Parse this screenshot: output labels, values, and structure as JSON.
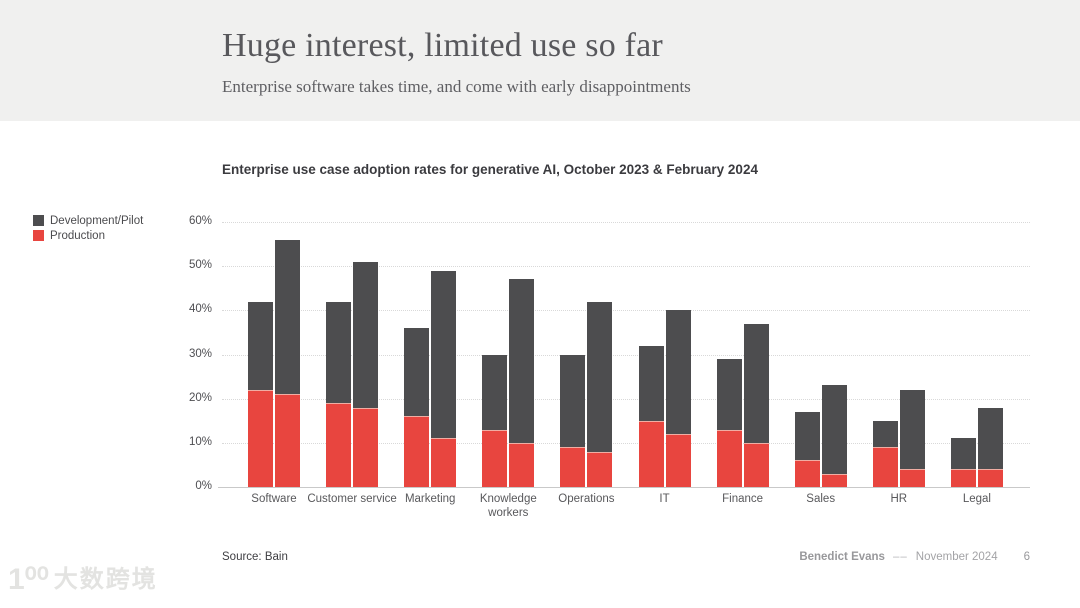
{
  "slide": {
    "title": "Huge interest, limited use so far",
    "subtitle": "Enterprise software takes time, and come with early disappointments",
    "footer": {
      "source": "Source: Bain",
      "author": "Benedict Evans",
      "separator": "––",
      "date": "November 2024",
      "page": "6"
    },
    "watermark": {
      "glyph": "1⁰⁰",
      "text": "大数跨境"
    }
  },
  "chart_data": {
    "type": "bar",
    "stacked": true,
    "title": "Enterprise use case adoption rates for generative AI, October 2023 & February 2024",
    "legend_position": "top-left",
    "grid": "horizontal-dotted",
    "ylim": [
      0,
      60
    ],
    "yticks": [
      "0%",
      "10%",
      "20%",
      "30%",
      "40%",
      "50%",
      "60%"
    ],
    "legend": [
      {
        "label": "Development/Pilot",
        "color": "#4D4D4F"
      },
      {
        "label": "Production",
        "color": "#E8453F"
      }
    ],
    "bar_pairs": [
      "October 2023",
      "February 2024"
    ],
    "categories": [
      "Software",
      "Customer service",
      "Marketing",
      "Knowledge workers",
      "Operations",
      "IT",
      "Finance",
      "Sales",
      "HR",
      "Legal"
    ],
    "points": [
      {
        "category": "Software",
        "oct2023": {
          "total": 42,
          "production": 22
        },
        "feb2024": {
          "total": 56,
          "production": 21
        }
      },
      {
        "category": "Customer service",
        "oct2023": {
          "total": 42,
          "production": 19
        },
        "feb2024": {
          "total": 51,
          "production": 18
        }
      },
      {
        "category": "Marketing",
        "oct2023": {
          "total": 36,
          "production": 16
        },
        "feb2024": {
          "total": 49,
          "production": 11
        }
      },
      {
        "category": "Knowledge workers",
        "oct2023": {
          "total": 30,
          "production": 13
        },
        "feb2024": {
          "total": 47,
          "production": 10
        }
      },
      {
        "category": "Operations",
        "oct2023": {
          "total": 30,
          "production": 9
        },
        "feb2024": {
          "total": 42,
          "production": 8
        }
      },
      {
        "category": "IT",
        "oct2023": {
          "total": 32,
          "production": 15
        },
        "feb2024": {
          "total": 40,
          "production": 12
        }
      },
      {
        "category": "Finance",
        "oct2023": {
          "total": 29,
          "production": 13
        },
        "feb2024": {
          "total": 37,
          "production": 10
        }
      },
      {
        "category": "Sales",
        "oct2023": {
          "total": 17,
          "production": 6
        },
        "feb2024": {
          "total": 23,
          "production": 3
        }
      },
      {
        "category": "HR",
        "oct2023": {
          "total": 15,
          "production": 9
        },
        "feb2024": {
          "total": 22,
          "production": 4
        }
      },
      {
        "category": "Legal",
        "oct2023": {
          "total": 11,
          "production": 4
        },
        "feb2024": {
          "total": 18,
          "production": 4
        }
      }
    ]
  }
}
